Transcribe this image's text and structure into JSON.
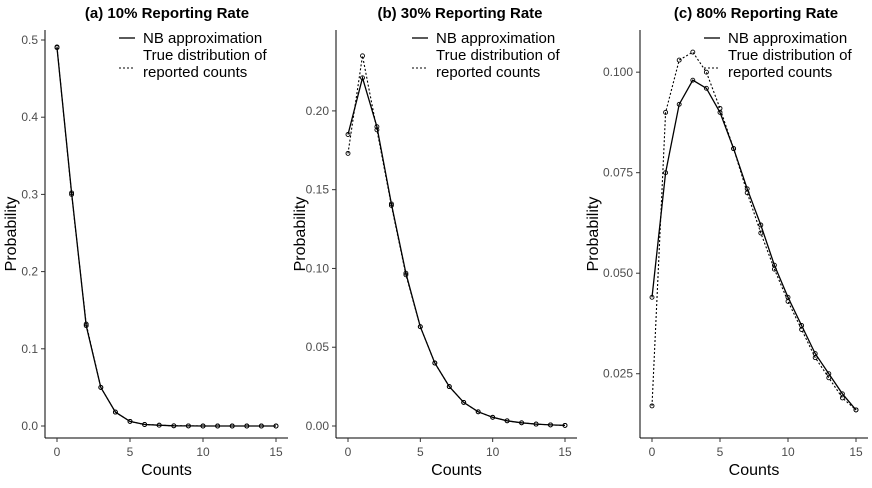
{
  "chart_data": [
    {
      "type": "line",
      "title": "(a) 10% Reporting Rate",
      "xlabel": "Counts",
      "ylabel": "Probability",
      "xlim": [
        0,
        15
      ],
      "ylim": [
        0,
        0.5
      ],
      "x_ticks": [
        "0",
        "5",
        "10",
        "15"
      ],
      "y_ticks": [
        "0.0",
        "0.1",
        "0.2",
        "0.3",
        "0.4",
        "0.5"
      ],
      "y_tick_values": [
        0,
        0.1,
        0.2,
        0.3,
        0.4,
        0.5
      ],
      "grid": false,
      "legend": [
        "NB approximation",
        "True distribution of reported counts"
      ],
      "legend_position": "top-right",
      "x": [
        0,
        1,
        2,
        3,
        4,
        5,
        6,
        7,
        8,
        9,
        10,
        11,
        12,
        13,
        14,
        15
      ],
      "series": [
        {
          "name": "NB approximation",
          "style": "solid",
          "values": [
            0.49,
            0.302,
            0.13,
            0.05,
            0.018,
            0.006,
            0.002,
            0.001,
            0.0003,
            0.0001,
            0.0,
            0.0,
            0.0,
            0.0,
            0.0,
            0.0
          ]
        },
        {
          "name": "True distribution of reported counts",
          "style": "dotted",
          "values": [
            0.491,
            0.3,
            0.132,
            0.05,
            0.018,
            0.006,
            0.002,
            0.001,
            0.0003,
            0.0001,
            0.0,
            0.0,
            0.0,
            0.0,
            0.0,
            0.0
          ]
        }
      ]
    },
    {
      "type": "line",
      "title": "(b) 30% Reporting Rate",
      "xlabel": "Counts",
      "ylabel": "Probability",
      "xlim": [
        0,
        15
      ],
      "ylim": [
        0,
        0.245
      ],
      "x_ticks": [
        "0",
        "5",
        "10",
        "15"
      ],
      "y_ticks": [
        "0.00",
        "0.05",
        "0.10",
        "0.15",
        "0.20"
      ],
      "y_tick_values": [
        0,
        0.05,
        0.1,
        0.15,
        0.2
      ],
      "grid": false,
      "legend": [
        "NB approximation",
        "True distribution of reported counts"
      ],
      "legend_position": "top-right",
      "x": [
        0,
        1,
        2,
        3,
        4,
        5,
        6,
        7,
        8,
        9,
        10,
        11,
        12,
        13,
        14,
        15
      ],
      "series": [
        {
          "name": "NB approximation",
          "style": "solid",
          "values": [
            0.185,
            0.221,
            0.19,
            0.141,
            0.097,
            0.063,
            0.04,
            0.025,
            0.015,
            0.009,
            0.0055,
            0.0033,
            0.002,
            0.0012,
            0.0007,
            0.0004
          ]
        },
        {
          "name": "True distribution of reported counts",
          "style": "dotted",
          "values": [
            0.173,
            0.235,
            0.188,
            0.14,
            0.096,
            0.063,
            0.04,
            0.025,
            0.015,
            0.009,
            0.0055,
            0.0033,
            0.002,
            0.0012,
            0.0007,
            0.0004
          ]
        }
      ]
    },
    {
      "type": "line",
      "title": "(c) 80% Reporting Rate",
      "xlabel": "Counts",
      "ylabel": "Probability",
      "xlim": [
        0,
        15
      ],
      "ylim": [
        0.012,
        0.108
      ],
      "x_ticks": [
        "0",
        "5",
        "10",
        "15"
      ],
      "y_ticks": [
        "0.025",
        "0.050",
        "0.075",
        "0.100"
      ],
      "y_tick_values": [
        0.025,
        0.05,
        0.075,
        0.1
      ],
      "grid": false,
      "legend": [
        "NB approximation",
        "True distribution of reported counts"
      ],
      "legend_position": "top-right",
      "x": [
        0,
        1,
        2,
        3,
        4,
        5,
        6,
        7,
        8,
        9,
        10,
        11,
        12,
        13,
        14,
        15
      ],
      "series": [
        {
          "name": "NB approximation",
          "style": "solid",
          "values": [
            0.044,
            0.075,
            0.092,
            0.098,
            0.096,
            0.09,
            0.081,
            0.071,
            0.062,
            0.052,
            0.044,
            0.037,
            0.03,
            0.025,
            0.02,
            0.016
          ]
        },
        {
          "name": "True distribution of reported counts",
          "style": "dotted",
          "values": [
            0.017,
            0.09,
            0.103,
            0.105,
            0.1,
            0.091,
            0.081,
            0.07,
            0.06,
            0.051,
            0.043,
            0.036,
            0.029,
            0.024,
            0.019,
            0.016
          ]
        }
      ]
    }
  ]
}
